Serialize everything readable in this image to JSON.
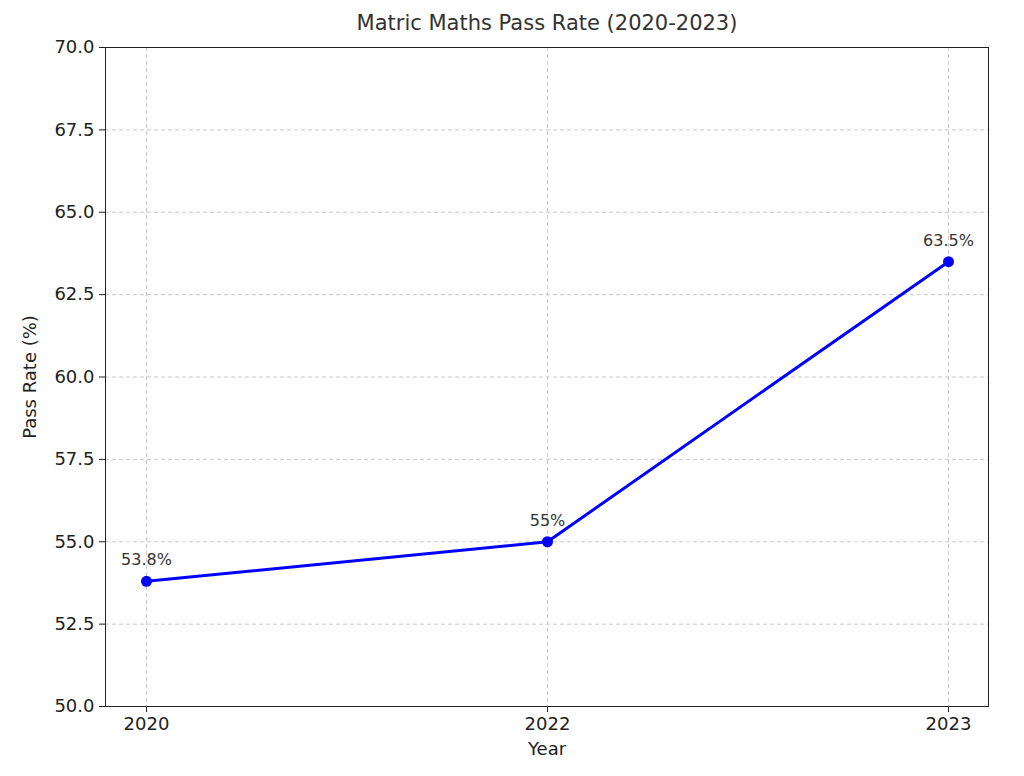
{
  "chart_data": {
    "type": "line",
    "title": "Matric Maths Pass Rate (2020-2023)",
    "x_label": "Year",
    "y_label": "Pass Rate (%)",
    "categories": [
      "2020",
      "2022",
      "2023"
    ],
    "values": [
      53.8,
      55,
      63.5
    ],
    "value_labels": [
      "53.8%",
      "55%",
      "63.5%"
    ],
    "data_labels": true,
    "color": "#0000ff",
    "marker": "circle",
    "line_style": "solid",
    "ylim": [
      50,
      70
    ],
    "yticks": [
      {
        "value": 50,
        "label": "50.0"
      },
      52.5,
      {
        "value": 55,
        "label": "55.0"
      },
      57.5,
      {
        "value": 60,
        "label": "60.0"
      },
      62.5,
      {
        "value": 65,
        "label": "65.0"
      },
      67.5,
      {
        "value": 70,
        "label": "70.0"
      }
    ],
    "grid": true
  }
}
